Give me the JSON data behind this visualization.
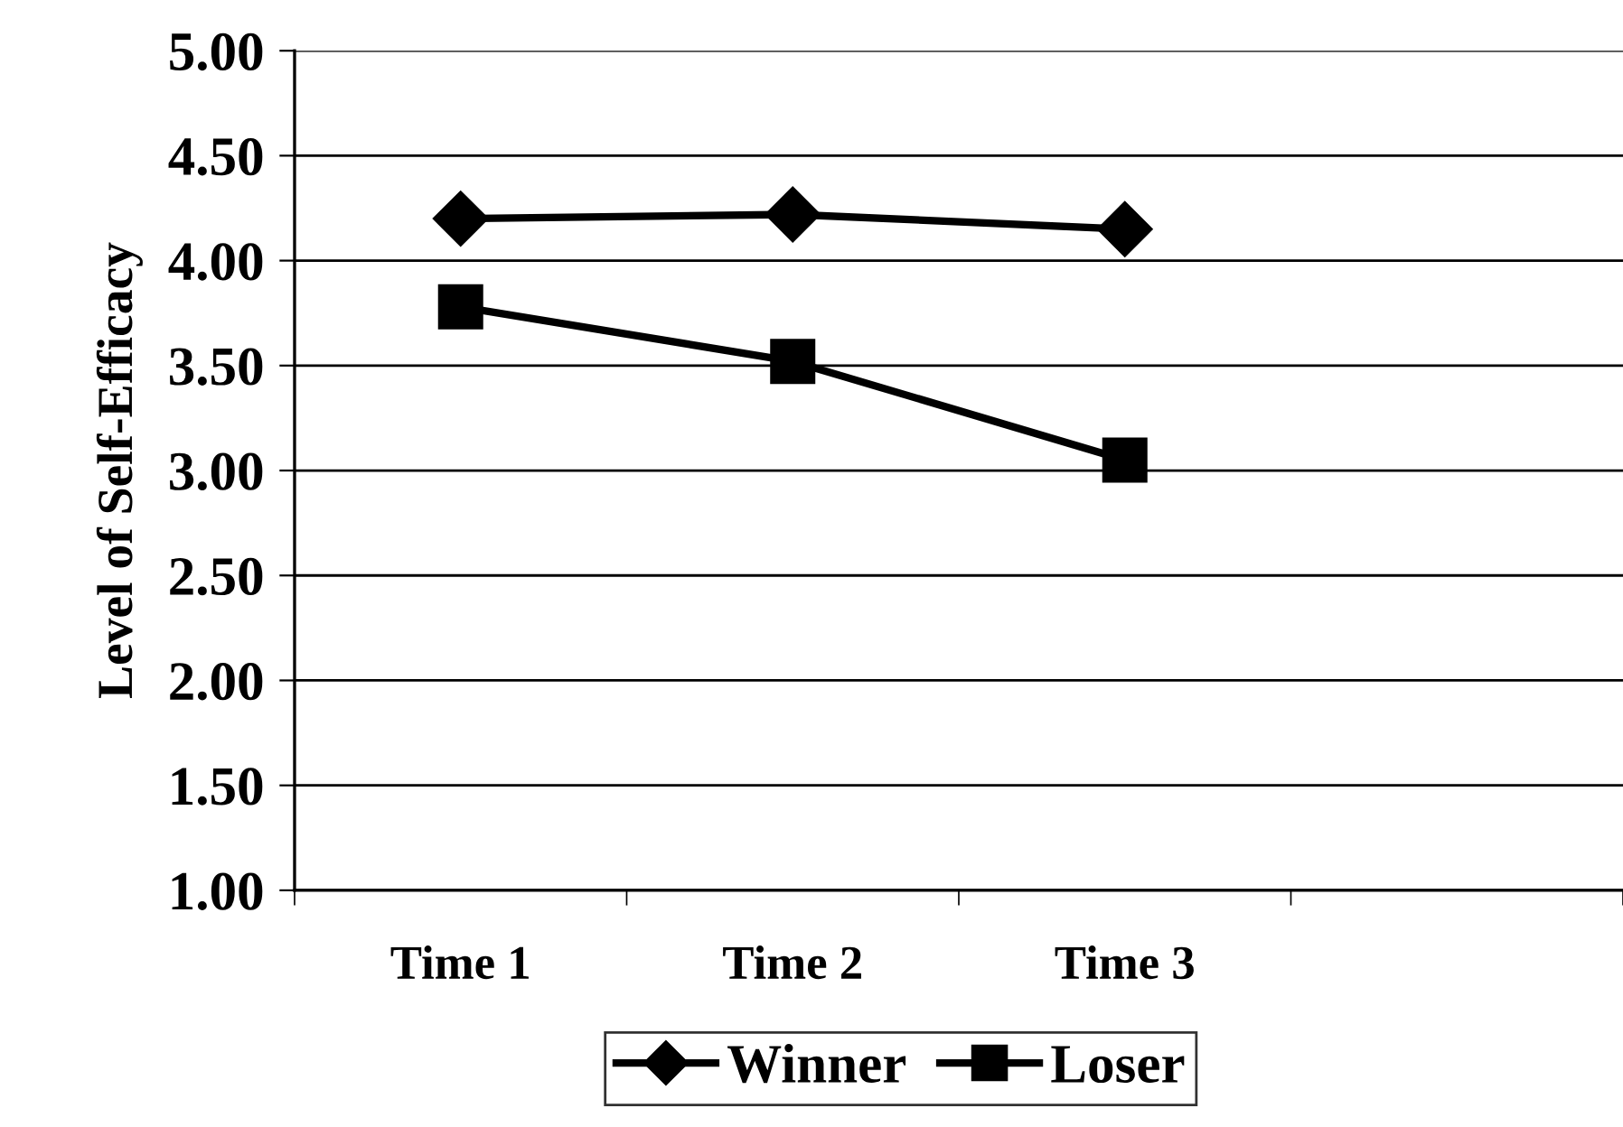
{
  "chart_data": {
    "type": "line",
    "ylabel": "Level of Self-Efficacy",
    "categories": [
      "Time 1",
      "Time 2",
      "Time 3",
      null
    ],
    "series": [
      {
        "name": "Winner",
        "color": "#000000",
        "marker": "diamond",
        "values": [
          4.2,
          4.22,
          4.15,
          null
        ]
      },
      {
        "name": "Loser",
        "color": "#000000",
        "marker": "square",
        "values": [
          3.78,
          3.52,
          3.05,
          null
        ]
      }
    ],
    "ylim": [
      1,
      5
    ],
    "yticks": [
      {
        "value": 1,
        "label": "1.00"
      },
      {
        "value": 1.5,
        "label": "1.50"
      },
      {
        "value": 2,
        "label": "2.00"
      },
      {
        "value": 2.5,
        "label": "2.50"
      },
      {
        "value": 3,
        "label": "3.00"
      },
      {
        "value": 3.5,
        "label": "3.50"
      },
      {
        "value": 4,
        "label": "4.00"
      },
      {
        "value": 4.5,
        "label": "4.50"
      },
      {
        "value": 5,
        "label": "5.00"
      }
    ],
    "grid": "y",
    "legend": "bottom",
    "line_style": "solid"
  }
}
